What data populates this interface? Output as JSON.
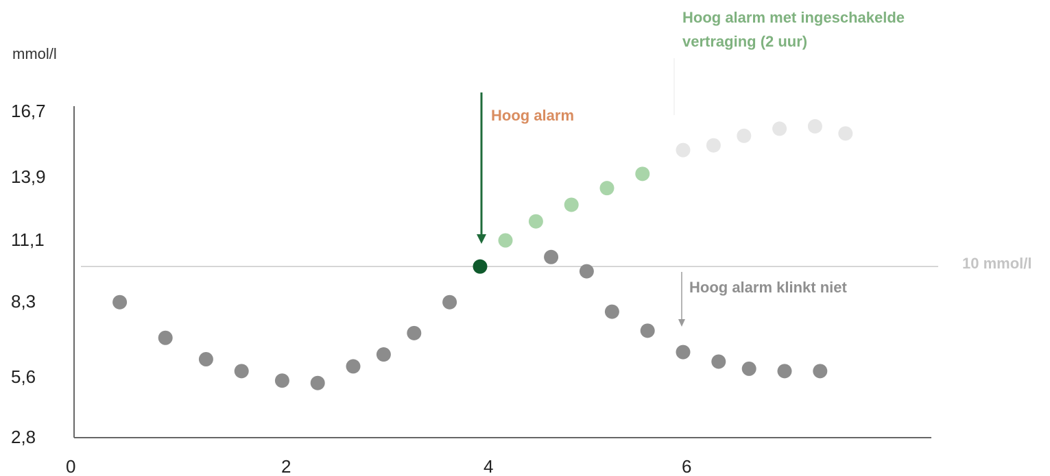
{
  "chart_data": {
    "type": "scatter",
    "ylabel": "mmol/l",
    "x_ticks": [
      "0",
      "2",
      "4",
      "6"
    ],
    "y_ticks": [
      "2,8",
      "5,6",
      "8,3",
      "11,1",
      "13,9",
      "16,7"
    ],
    "xlim": [
      0,
      8.6
    ],
    "threshold": {
      "label": "10 mmol/l",
      "y": 10.0
    },
    "series": [
      {
        "points": [
          [
            0.45,
            8.5
          ],
          [
            0.9,
            7.0
          ],
          [
            1.3,
            6.1
          ],
          [
            1.65,
            5.6
          ],
          [
            2.05,
            5.2
          ],
          [
            2.4,
            5.1
          ],
          [
            2.75,
            5.8
          ],
          [
            3.05,
            6.3
          ],
          [
            3.35,
            7.2
          ],
          [
            3.7,
            8.5
          ],
          [
            4.0,
            10.0
          ],
          [
            4.7,
            10.4
          ],
          [
            5.05,
            9.8
          ],
          [
            5.3,
            8.1
          ],
          [
            5.65,
            7.3
          ],
          [
            6.0,
            6.4
          ],
          [
            6.35,
            6.0
          ],
          [
            6.65,
            5.7
          ],
          [
            7.0,
            5.6
          ],
          [
            7.35,
            5.6
          ]
        ],
        "alarm_point_index": 10
      },
      {
        "points": [
          [
            4.25,
            11.1
          ],
          [
            4.55,
            11.9
          ],
          [
            4.9,
            12.6
          ],
          [
            5.25,
            13.3
          ],
          [
            5.6,
            13.9
          ]
        ]
      },
      {
        "points": [
          [
            6.0,
            14.9
          ],
          [
            6.3,
            15.1
          ],
          [
            6.6,
            15.5
          ],
          [
            6.95,
            15.8
          ],
          [
            7.3,
            15.9
          ],
          [
            7.6,
            15.6
          ]
        ]
      }
    ],
    "annotations": {
      "high_alarm": "Hoog alarm",
      "high_alarm_delay": "Hoog alarm met ingeschakelde vertraging (2 uur)",
      "no_alarm": "Hoog alarm klinkt niet"
    },
    "colors": {
      "gray_points": "#8c8c8c",
      "alarm_point": "#0f5a2c",
      "green_points": "#a9d5a9",
      "faded_points": "#e6e6e6",
      "high_alarm_text": "#d98c5f",
      "delay_text": "#7fb27f",
      "no_alarm_text": "#8f8f8f",
      "threshold_label": "#c4c4c4",
      "arrow_green": "#1f6b3a",
      "arrow_gray": "#9a9a9a",
      "axis": "#666666",
      "threshold_line": "#c8c8c8"
    }
  },
  "annotations": {
    "high_alarm": "Hoog alarm",
    "delay_line1": "Hoog alarm met ingeschakelde",
    "delay_line2": "vertraging (2 uur)",
    "no_alarm": "Hoog alarm klinkt niet",
    "threshold_label": "10 mmol/l",
    "ylabel": "mmol/l"
  }
}
